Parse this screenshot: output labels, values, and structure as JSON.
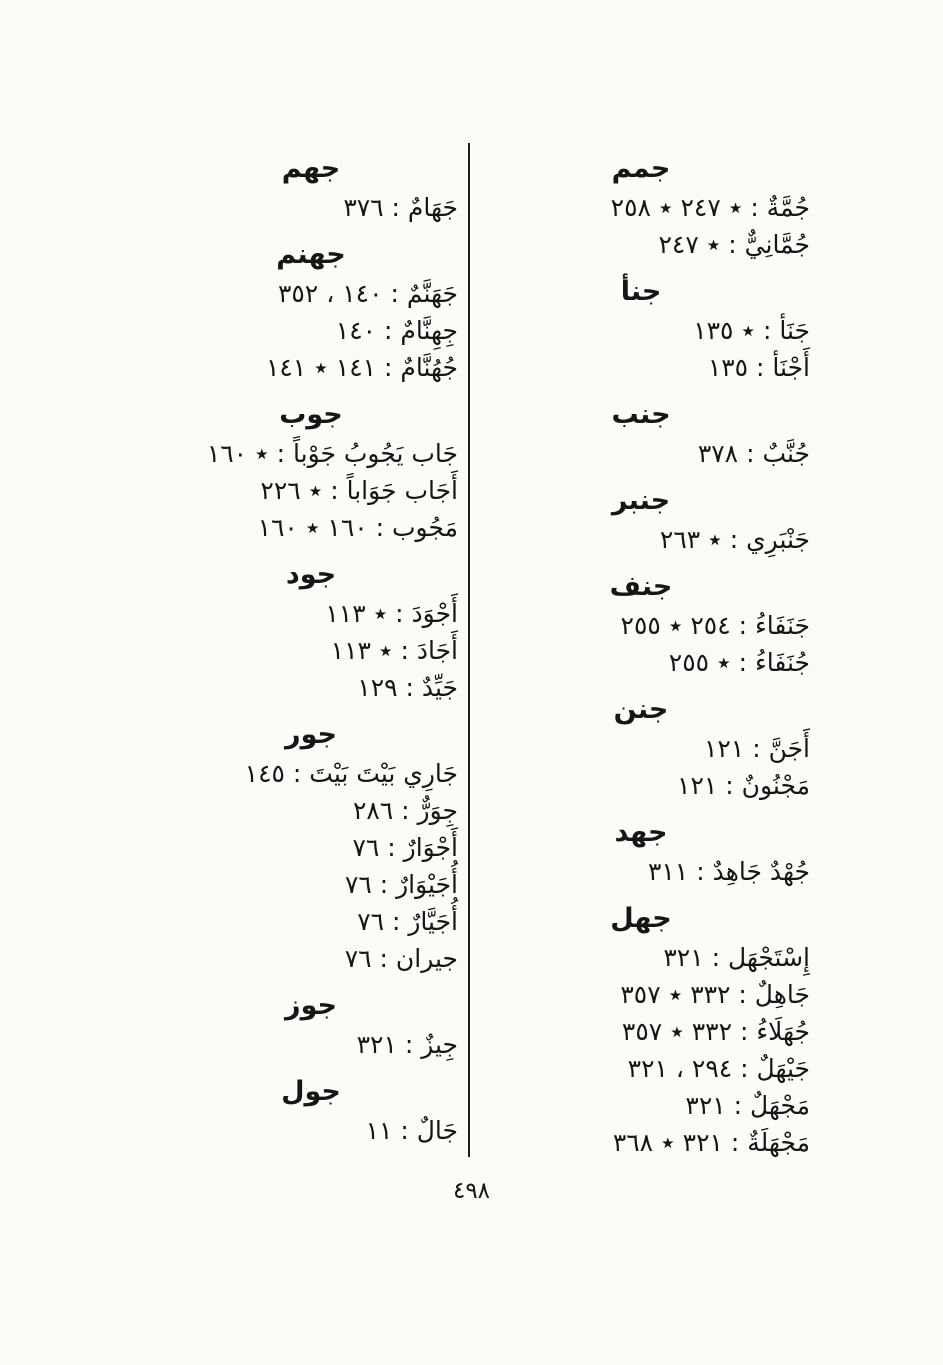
{
  "page_number": "٤٩٨",
  "right": [
    {
      "root": "جمم",
      "entries": [
        "جُمَّةٌ : ٭ ٢٤٧ ٭ ٢٥٨",
        "جُمَّانِيٌّ : ٭ ٢٤٧"
      ]
    },
    {
      "root": "جنأ",
      "entries": [
        "جَنَأ : ٭ ١٣٥",
        "أَجْنَأ : ١٣٥"
      ]
    },
    {
      "root": "جنب",
      "entries": [
        "جُنَّبٌ : ٣٧٨"
      ]
    },
    {
      "root": "جنبر",
      "entries": [
        "جَنْبَرِي : ٭ ٢٦٣"
      ]
    },
    {
      "root": "جنف",
      "entries": [
        "جَنَفَاءُ : ٢٥٤ ٭ ٢٥٥",
        "جُنَفَاءُ : ٭ ٢٥٥"
      ]
    },
    {
      "root": "جنن",
      "entries": [
        "أَجَنَّ : ١٢١",
        "مَجْنُونٌ : ١٢١"
      ]
    },
    {
      "root": "جهد",
      "entries": [
        "جُهْدٌ جَاهِدٌ : ٣١١"
      ]
    },
    {
      "root": "جهل",
      "entries": [
        "إِسْتَجْهَل : ٣٢١",
        "جَاهِلٌ : ٣٣٢ ٭ ٣٥٧",
        "جُهَلَاءُ : ٣٣٢ ٭ ٣٥٧",
        "جَيْهَلٌ : ٢٩٤ ، ٣٢١",
        "مَجْهَلٌ : ٣٢١",
        "مَجْهَلَةٌ : ٣٢١ ٭ ٣٦٨"
      ]
    }
  ],
  "left": [
    {
      "root": "جهم",
      "entries": [
        "جَهَامٌ : ٣٧٦"
      ]
    },
    {
      "root": "جهنم",
      "entries": [
        "جَهَنَّمٌ : ١٤٠ ، ٣٥٢",
        "جِهِنَّامٌ : ١٤٠",
        "جُهُنَّامٌ : ١٤١ ٭ ١٤١"
      ]
    },
    {
      "root": "جوب",
      "entries": [
        "جَاب يَجُوبُ جَوْباً : ٭ ١٦٠",
        "أَجَاب جَوَاباً : ٭ ٢٢٦",
        "مَجُوب : ١٦٠ ٭ ١٦٠"
      ]
    },
    {
      "root": "جود",
      "entries": [
        "أَجْوَدَ : ٭ ١١٣",
        "أَجَادَ : ٭ ١١٣",
        "جَيِّدٌ : ١٢٩"
      ]
    },
    {
      "root": "جور",
      "entries": [
        "جَارِي بَيْتَ بَيْتَ : ١٤٥",
        "جِوَرٌّ : ٢٨٦",
        "أَجْوَارٌ : ٧٦",
        "أُجَيْوَارٌ : ٧٦",
        "أُجَيَّارٌ : ٧٦",
        "جيران : ٧٦"
      ]
    },
    {
      "root": "جوز",
      "entries": [
        "جِيزٌ : ٣٢١"
      ]
    },
    {
      "root": "جول",
      "entries": [
        "جَالٌ : ١١"
      ]
    }
  ]
}
